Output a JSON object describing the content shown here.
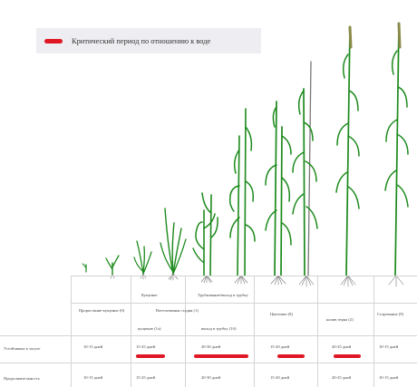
{
  "legend": {
    "text": "Критический период по отношению к воде",
    "color": "#e01825"
  },
  "colors": {
    "plant_green": "#1c8a1c",
    "plant_dark": "#166b16",
    "ear": "#8a8a4a",
    "root": "#777777",
    "critical": "#e01825"
  },
  "stages": {
    "tillering": "Кущение",
    "stem_extension": "Трубкование/выход в трубку",
    "earing": "Цветение (8)",
    "ripening": "Созревание (9)"
  },
  "rows": {
    "row1_label": "Устойчивые к засухе",
    "row2_label": "Продолжительность"
  },
  "phases": {
    "germination": "Прорастание-кущение (0)",
    "vegetative": "Вегетативная стадия (1)",
    "tillering_sub": "кущение (1а)",
    "booting_sub": "выход в трубку (1б)",
    "flowering": "Цветение (8)",
    "grain_fill": "налив зерна (2)",
    "ripening": "Созревание (9)"
  },
  "durations": {
    "d1": "10-15 дней",
    "d2": "15-25 дней",
    "d3": "20-30 дней",
    "d4": "15-20 дней",
    "d5": "20-25 дней",
    "d6": "10-15 дней",
    "r2_1": "10-15 дней",
    "r2_2": "15-25 дней",
    "r2_3": "20-30 дней",
    "r2_4": "15-20 дней",
    "r2_5": "20-25 дней",
    "r2_6": "10-15 дней"
  }
}
